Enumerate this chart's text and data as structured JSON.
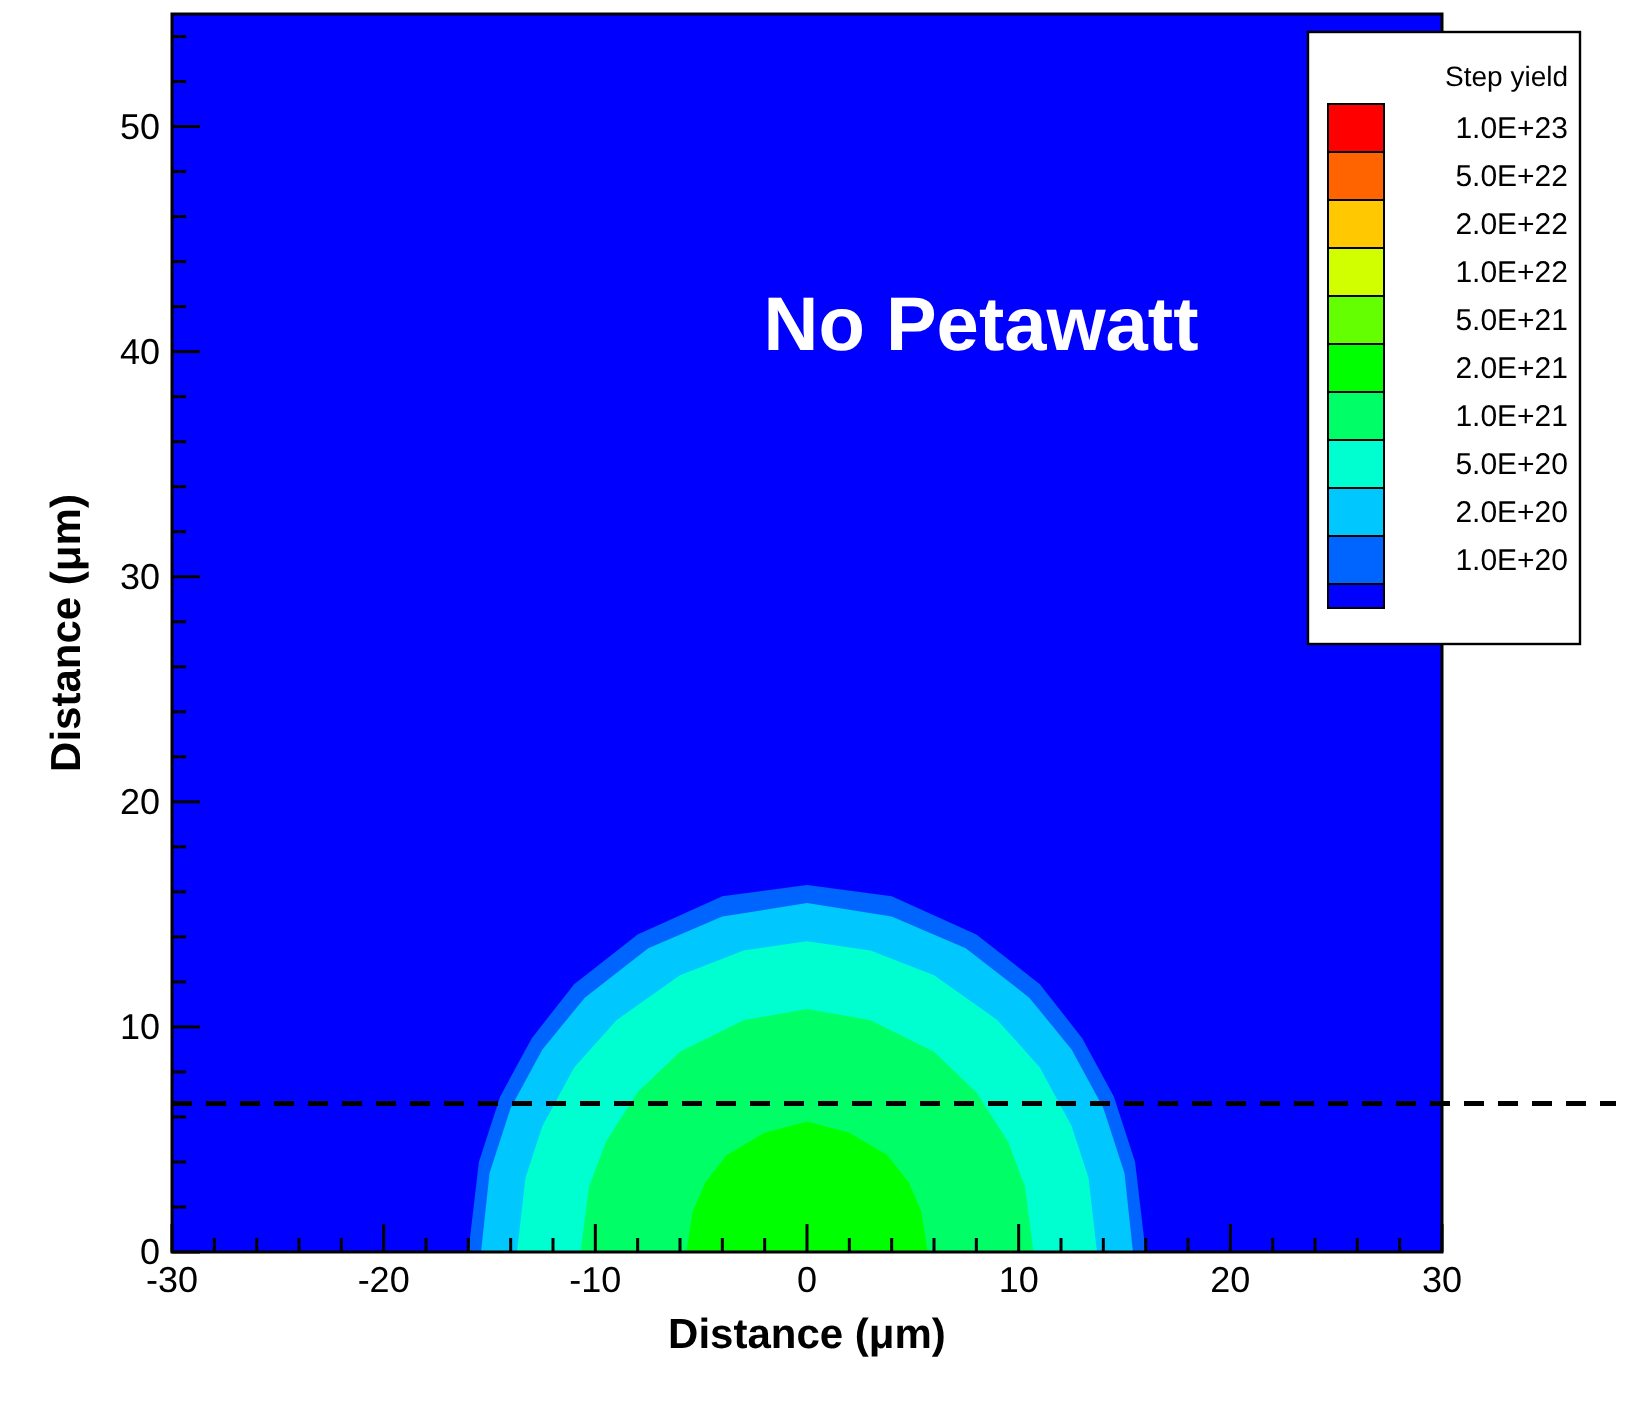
{
  "chart_data": {
    "type": "area",
    "title": "No Petawatt",
    "xlabel": "Distance (μm)",
    "ylabel": "Distance (μm)",
    "legend_title": "Step yield",
    "legend": "top right",
    "grid": false,
    "xlim": [
      -30,
      30
    ],
    "ylim": [
      0,
      55
    ],
    "xticks": [
      -30,
      {
        "value": -28,
        "label": null
      },
      {
        "value": -26,
        "label": null
      },
      {
        "value": -24,
        "label": null
      },
      {
        "value": -22,
        "label": null
      },
      -20,
      {
        "value": -18,
        "label": null
      },
      {
        "value": -16,
        "label": null
      },
      {
        "value": -14,
        "label": null
      },
      {
        "value": -12,
        "label": null
      },
      -10,
      {
        "value": -8,
        "label": null
      },
      {
        "value": -6,
        "label": null
      },
      {
        "value": -4,
        "label": null
      },
      {
        "value": -2,
        "label": null
      },
      0,
      {
        "value": 2,
        "label": null
      },
      {
        "value": 4,
        "label": null
      },
      {
        "value": 6,
        "label": null
      },
      {
        "value": 8,
        "label": null
      },
      10,
      {
        "value": 12,
        "label": null
      },
      {
        "value": 14,
        "label": null
      },
      {
        "value": 16,
        "label": null
      },
      {
        "value": 18,
        "label": null
      },
      20,
      {
        "value": 22,
        "label": null
      },
      {
        "value": 24,
        "label": null
      },
      {
        "value": 26,
        "label": null
      },
      {
        "value": 28,
        "label": null
      },
      30
    ],
    "yticks": [
      0,
      {
        "value": 2,
        "label": null
      },
      {
        "value": 4,
        "label": null
      },
      {
        "value": 6,
        "label": null
      },
      {
        "value": 8,
        "label": null
      },
      10,
      {
        "value": 12,
        "label": null
      },
      {
        "value": 14,
        "label": null
      },
      {
        "value": 16,
        "label": null
      },
      {
        "value": 18,
        "label": null
      },
      20,
      {
        "value": 22,
        "label": null
      },
      {
        "value": 24,
        "label": null
      },
      {
        "value": 26,
        "label": null
      },
      {
        "value": 28,
        "label": null
      },
      30,
      {
        "value": 32,
        "label": null
      },
      {
        "value": 34,
        "label": null
      },
      {
        "value": 36,
        "label": null
      },
      {
        "value": 38,
        "label": null
      },
      40,
      {
        "value": 42,
        "label": null
      },
      {
        "value": 44,
        "label": null
      },
      {
        "value": 46,
        "label": null
      },
      {
        "value": 48,
        "label": null
      },
      50,
      {
        "value": 52,
        "label": null
      },
      {
        "value": 54,
        "label": null
      }
    ],
    "ref_lines": [
      {
        "axis": "y",
        "value": 6.6,
        "line_style": "dashed",
        "color": "#000000"
      }
    ],
    "bands": [
      {
        "axis": "y",
        "from": 0,
        "to": 55,
        "color": "#0000ff"
      }
    ],
    "series": [
      {
        "name": "1.0E+20",
        "color": "#0064ff",
        "x": [
          -16,
          -15.5,
          -14.5,
          -13,
          -11,
          -8,
          -4,
          0,
          4,
          8,
          11,
          13,
          14.5,
          15.5,
          16
        ],
        "values": [
          0,
          4.0,
          6.9,
          9.5,
          11.9,
          14.1,
          15.8,
          16.3,
          15.8,
          14.1,
          11.9,
          9.5,
          6.9,
          4.0,
          0
        ]
      },
      {
        "name": "2.0E+20",
        "color": "#00c8ff",
        "x": [
          -15.4,
          -15,
          -14,
          -12.5,
          -10.5,
          -7.5,
          -4,
          0,
          4,
          7.5,
          10.5,
          12.5,
          14,
          15,
          15.4
        ],
        "values": [
          0,
          3.5,
          6.4,
          9.0,
          11.3,
          13.5,
          14.9,
          15.5,
          14.9,
          13.5,
          11.3,
          9.0,
          6.4,
          3.5,
          0
        ]
      },
      {
        "name": "5.0E+20",
        "color": "#00ffd0",
        "x": [
          -13.7,
          -13.3,
          -12.5,
          -11,
          -9,
          -6,
          -3,
          0,
          3,
          6,
          9,
          11,
          12.5,
          13.3,
          13.7
        ],
        "values": [
          0,
          3.3,
          5.6,
          8.2,
          10.3,
          12.3,
          13.4,
          13.8,
          13.4,
          12.3,
          10.3,
          8.2,
          5.6,
          3.3,
          0
        ]
      },
      {
        "name": "1.0E+21",
        "color": "#00ff66",
        "x": [
          -10.7,
          -10.3,
          -9.5,
          -8,
          -6,
          -3,
          0,
          3,
          6,
          8,
          9.5,
          10.3,
          10.7
        ],
        "values": [
          0,
          2.9,
          4.9,
          7.1,
          8.9,
          10.3,
          10.8,
          10.3,
          8.9,
          7.1,
          4.9,
          2.9,
          0
        ]
      },
      {
        "name": "2.0E+21",
        "color": "#00ff00",
        "x": [
          -5.7,
          -5.4,
          -4.8,
          -3.8,
          -2,
          0,
          2,
          3.8,
          4.8,
          5.4,
          5.7
        ],
        "values": [
          0,
          1.8,
          3.1,
          4.3,
          5.3,
          5.8,
          5.3,
          4.3,
          3.1,
          1.8,
          0
        ]
      },
      {
        "name": "5.0E+21",
        "color": "#64ff00"
      },
      {
        "name": "1.0E+22",
        "color": "#d2ff00"
      },
      {
        "name": "2.0E+22",
        "color": "#ffc800"
      },
      {
        "name": "5.0E+22",
        "color": "#ff6400"
      },
      {
        "name": "1.0E+23",
        "color": "#ff0000"
      }
    ]
  }
}
